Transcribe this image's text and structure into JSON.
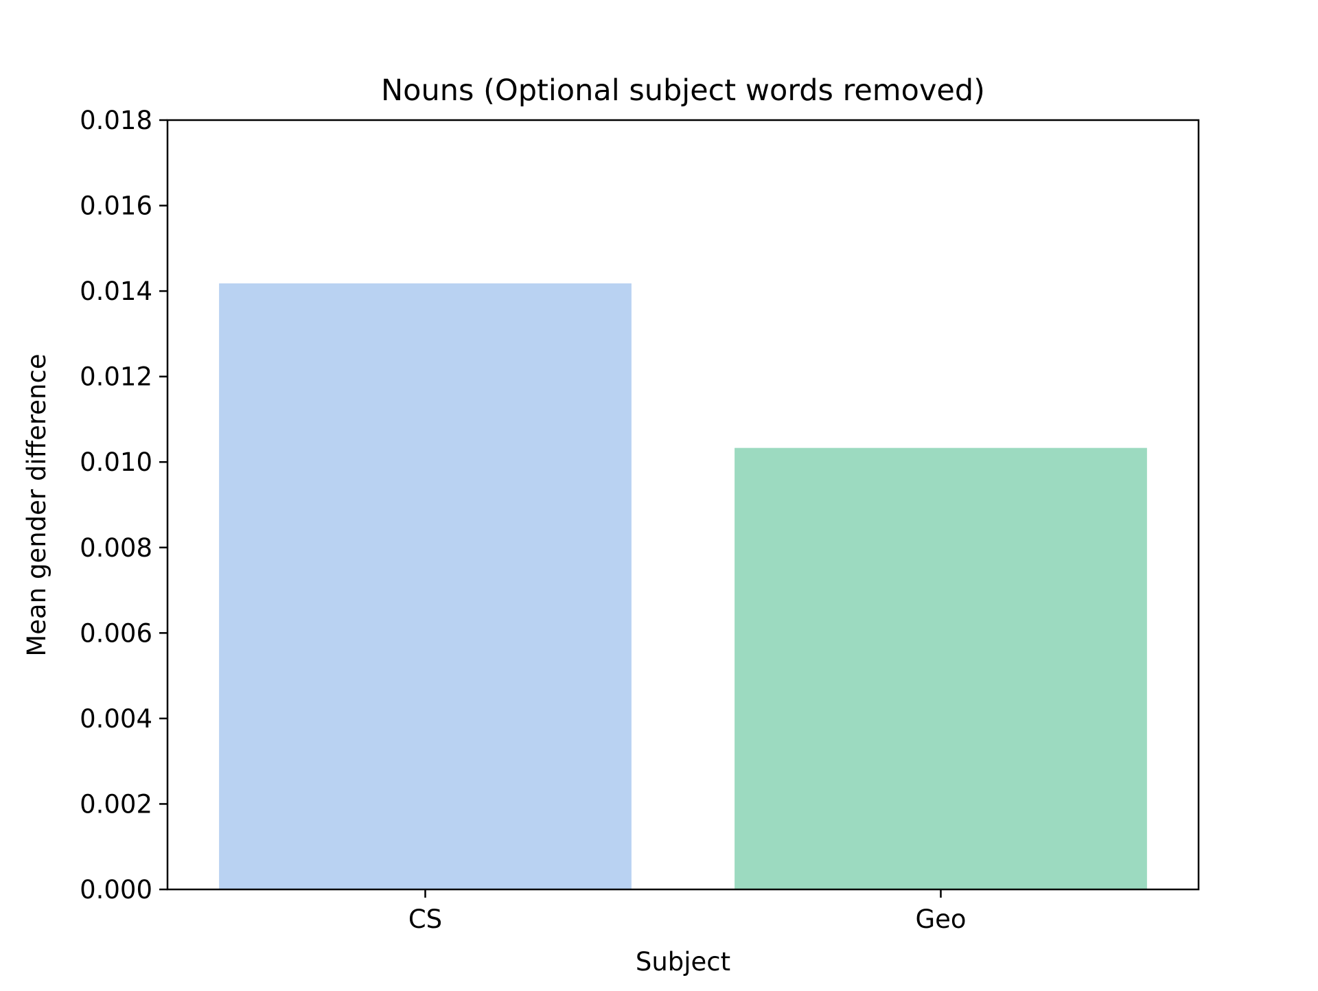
{
  "chart_data": {
    "type": "bar",
    "title": "Nouns (Optional subject words removed)",
    "xlabel": "Subject",
    "ylabel": "Mean gender difference",
    "categories": [
      "CS",
      "Geo"
    ],
    "values": [
      0.01418,
      0.01033
    ],
    "colors": [
      "#b9d2f2",
      "#9cdac0"
    ],
    "ylim": [
      0,
      0.018
    ],
    "yticks": [
      "0.000",
      "0.002",
      "0.004",
      "0.006",
      "0.008",
      "0.010",
      "0.012",
      "0.014",
      "0.016",
      "0.018"
    ],
    "grid": false,
    "legend": "none"
  }
}
